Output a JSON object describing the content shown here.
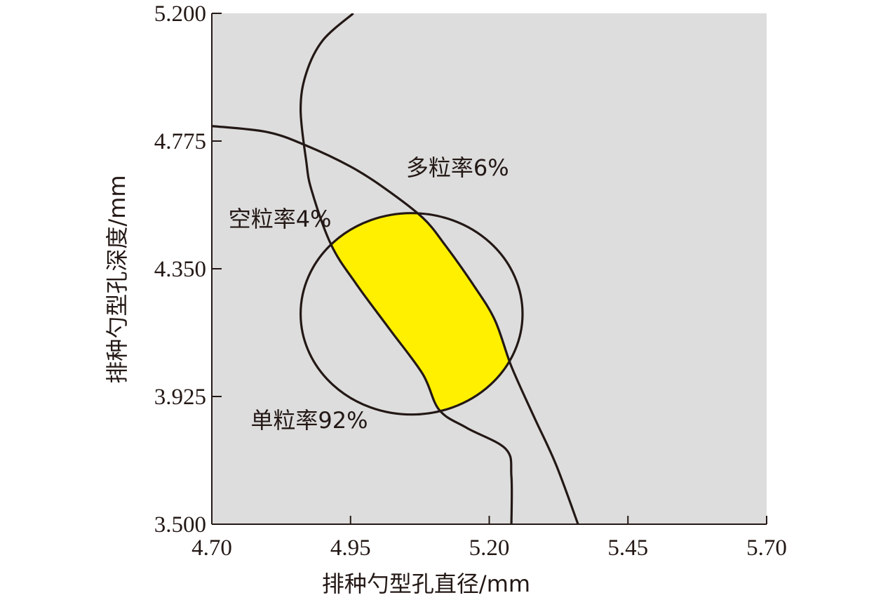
{
  "chart_data": {
    "type": "contour",
    "xlabel": "排种勺型孔直径/mm",
    "ylabel": "排种勺型孔深度/mm",
    "xlim": [
      4.7,
      5.7
    ],
    "ylim": [
      3.5,
      5.2
    ],
    "x_ticks": [
      "4.70",
      "4.95",
      "5.20",
      "5.45",
      "5.70"
    ],
    "y_ticks": [
      "5.200",
      "4.775",
      "4.350",
      "3.925",
      "3.500"
    ],
    "background_color": "#dddddd",
    "feasible_color": "#fff000",
    "line_color": "#231815",
    "curves": [
      {
        "label": "多粒率6%",
        "points": [
          [
            4.7,
            4.825
          ],
          [
            4.8,
            4.805
          ],
          [
            4.87,
            4.76
          ],
          [
            4.95,
            4.69
          ],
          [
            5.01,
            4.62
          ],
          [
            5.08,
            4.52
          ],
          [
            5.12,
            4.43
          ],
          [
            5.17,
            4.3
          ],
          [
            5.21,
            4.18
          ],
          [
            5.24,
            4.025
          ],
          [
            5.28,
            3.86
          ],
          [
            5.32,
            3.7
          ],
          [
            5.36,
            3.5
          ]
        ]
      },
      {
        "label": "空粒率4%",
        "points": [
          [
            4.955,
            5.2
          ],
          [
            4.9,
            5.11
          ],
          [
            4.87,
            5.0
          ],
          [
            4.86,
            4.88
          ],
          [
            4.87,
            4.71
          ],
          [
            4.88,
            4.61
          ],
          [
            4.915,
            4.43
          ],
          [
            4.96,
            4.3
          ],
          [
            5.02,
            4.15
          ],
          [
            5.08,
            4.0
          ],
          [
            5.11,
            3.88
          ],
          [
            5.16,
            3.82
          ],
          [
            5.23,
            3.75
          ],
          [
            5.24,
            3.66
          ],
          [
            5.24,
            3.5
          ]
        ]
      },
      {
        "label": "单粒率92%",
        "shape": "ellipse",
        "center": [
          5.06,
          4.2
        ],
        "x_radius": 0.2,
        "y_radius": 0.335
      }
    ],
    "annotations": [
      {
        "text": "多粒率6%",
        "x": 5.05,
        "y": 4.66
      },
      {
        "text": "空粒率4%",
        "x": 4.73,
        "y": 4.49
      },
      {
        "text": "单粒率92%",
        "x": 4.77,
        "y": 3.82
      }
    ]
  }
}
